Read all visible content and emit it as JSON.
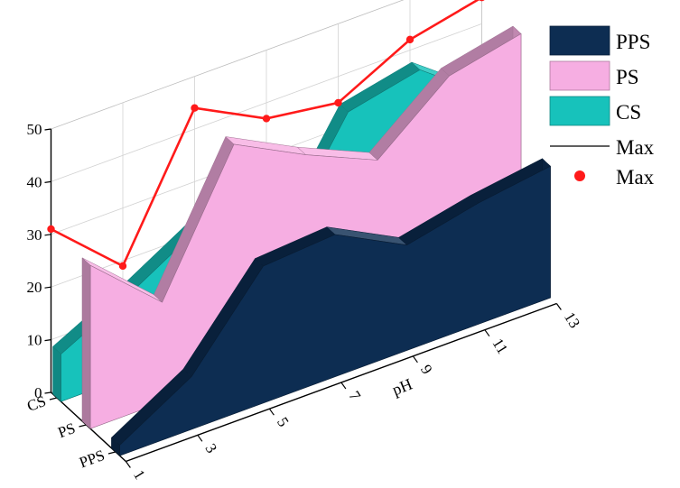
{
  "chart_data": {
    "type": "area",
    "view": "3d-wall",
    "xlabel": "pH",
    "x_ticks": [
      "1",
      "3",
      "5",
      "7",
      "9",
      "11",
      "13"
    ],
    "z_ticks": [
      "0",
      "10",
      "20",
      "30",
      "40",
      "50"
    ],
    "y_ticks": [
      "CS",
      "PS",
      "PPS"
    ],
    "zlim": [
      0,
      50
    ],
    "xlim": [
      1,
      13
    ],
    "x": [
      1,
      3,
      5,
      7,
      9,
      11,
      13
    ],
    "series": [
      {
        "name": "PPS",
        "values": [
          2,
          10,
          26,
          27,
          20,
          23,
          25
        ],
        "color": "#0d2d52"
      },
      {
        "name": "PS",
        "values": [
          31,
          19,
          44,
          37,
          31,
          42,
          45
        ],
        "color": "#f6aee2"
      },
      {
        "name": "CS",
        "values": [
          9,
          16,
          24,
          14,
          35,
          38,
          28
        ],
        "color": "#17c2bb"
      },
      {
        "name": "Max",
        "values": [
          31,
          19,
          44,
          37,
          35,
          42,
          45
        ],
        "color": "#ff1a1a"
      }
    ],
    "legend": [
      {
        "label": "PPS",
        "kind": "box",
        "color": "#0d2d52"
      },
      {
        "label": "PS",
        "kind": "box",
        "color": "#f6aee2"
      },
      {
        "label": "CS",
        "kind": "box",
        "color": "#17c2bb"
      },
      {
        "label": "Max",
        "kind": "line",
        "color": "#000000"
      },
      {
        "label": "Max",
        "kind": "marker",
        "color": "#ff1a1a"
      }
    ],
    "legend_position": "top-right",
    "grid": true
  }
}
